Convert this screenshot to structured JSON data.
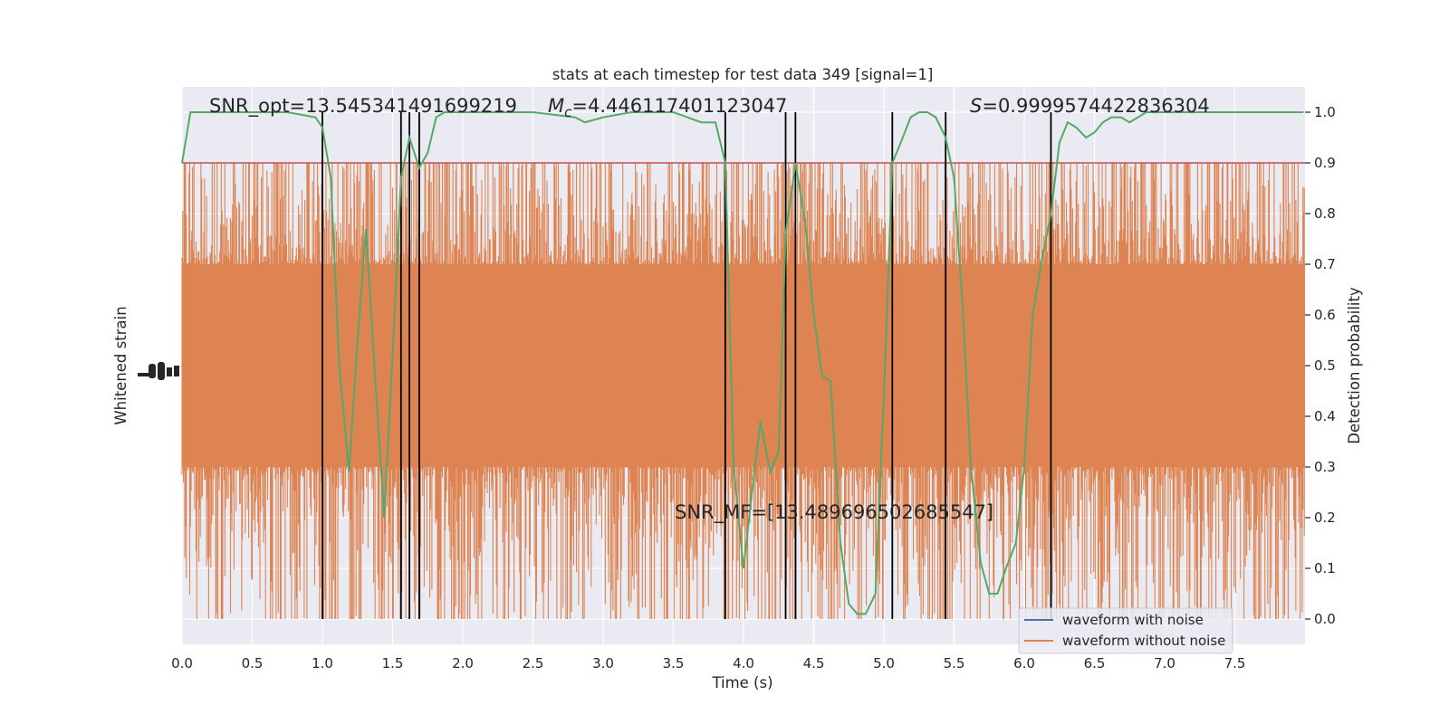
{
  "chart_data": {
    "type": "line",
    "title": "stats at each timestep for test data 349 [signal=1]",
    "xlabel": "Time (s)",
    "ylabel_left": "Whitened strain",
    "ylabel_right": "Detection probability",
    "xlim": [
      0,
      8
    ],
    "ylim_right": [
      -0.05,
      1.05
    ],
    "x_ticks": [
      "0.0",
      "0.5",
      "1.0",
      "1.5",
      "2.0",
      "2.5",
      "3.0",
      "3.5",
      "4.0",
      "4.5",
      "5.0",
      "5.5",
      "6.0",
      "6.5",
      "7.0",
      "7.5"
    ],
    "x_tick_values": [
      0,
      0.5,
      1,
      1.5,
      2,
      2.5,
      3,
      3.5,
      4,
      4.5,
      5,
      5.5,
      6,
      6.5,
      7,
      7.5
    ],
    "y_ticks_right": [
      "0.0",
      "0.1",
      "0.2",
      "0.3",
      "0.4",
      "0.5",
      "0.6",
      "0.7",
      "0.8",
      "0.9",
      "1.0"
    ],
    "y_tick_values_right": [
      0,
      0.1,
      0.2,
      0.3,
      0.4,
      0.5,
      0.6,
      0.7,
      0.8,
      0.9,
      1.0
    ],
    "threshold": 0.9,
    "grid": true,
    "legend_position": "lower-right",
    "annotations": {
      "snr_opt": "SNR_opt=13.545341491699219",
      "mc_symbol": "M",
      "mc_sub": "c",
      "mc_value": "=4.446117401123047",
      "s_symbol": "S",
      "s_value": "=0.9999574422836304",
      "snr_mf": "SNR_MF=[13.489696502685547]"
    },
    "vertical_markers": [
      1.0,
      1.56,
      1.62,
      1.69,
      3.87,
      4.3,
      4.37,
      5.06,
      5.44,
      6.19
    ],
    "series": [
      {
        "name": "waveform with noise",
        "color": "#4c72b0",
        "note_visible": true
      },
      {
        "name": "waveform without noise",
        "color": "#dd8452",
        "band_center": 0.5,
        "band_core": [
          0.3,
          0.7
        ],
        "spike_range": [
          0.0,
          0.9
        ]
      },
      {
        "name": "",
        "color": "#55a868",
        "x": [
          0.0,
          0.06,
          0.2,
          0.5,
          0.75,
          0.95,
          1.0,
          1.06,
          1.12,
          1.19,
          1.25,
          1.31,
          1.37,
          1.44,
          1.5,
          1.56,
          1.62,
          1.69,
          1.75,
          1.81,
          1.87,
          2.0,
          2.5,
          2.8,
          2.87,
          3.0,
          3.2,
          3.5,
          3.7,
          3.8,
          3.87,
          3.93,
          4.0,
          4.06,
          4.12,
          4.19,
          4.25,
          4.3,
          4.37,
          4.44,
          4.5,
          4.56,
          4.62,
          4.69,
          4.75,
          4.81,
          4.87,
          4.94,
          5.0,
          5.06,
          5.12,
          5.19,
          5.25,
          5.31,
          5.37,
          5.44,
          5.5,
          5.56,
          5.62,
          5.69,
          5.75,
          5.81,
          5.87,
          5.94,
          6.0,
          6.06,
          6.12,
          6.19,
          6.25,
          6.31,
          6.37,
          6.44,
          6.5,
          6.56,
          6.62,
          6.69,
          6.75,
          6.81,
          6.87,
          7.0,
          7.5,
          7.99
        ],
        "values": [
          0.9,
          1.0,
          1.0,
          1.0,
          1.0,
          0.99,
          0.97,
          0.87,
          0.5,
          0.29,
          0.55,
          0.77,
          0.5,
          0.2,
          0.52,
          0.87,
          0.95,
          0.89,
          0.92,
          0.99,
          1.0,
          1.0,
          1.0,
          0.99,
          0.98,
          0.99,
          1.0,
          1.0,
          0.98,
          0.98,
          0.9,
          0.3,
          0.1,
          0.25,
          0.39,
          0.29,
          0.33,
          0.76,
          0.9,
          0.78,
          0.6,
          0.48,
          0.47,
          0.15,
          0.03,
          0.01,
          0.01,
          0.05,
          0.44,
          0.9,
          0.94,
          0.99,
          1.0,
          1.0,
          0.99,
          0.95,
          0.87,
          0.62,
          0.3,
          0.11,
          0.05,
          0.05,
          0.1,
          0.15,
          0.3,
          0.6,
          0.7,
          0.8,
          0.94,
          0.98,
          0.97,
          0.95,
          0.96,
          0.98,
          0.99,
          0.99,
          0.98,
          0.99,
          1.0,
          1.0,
          1.0,
          1.0
        ]
      }
    ]
  },
  "legend": {
    "items": [
      {
        "label": "waveform with noise",
        "color": "#4c72b0"
      },
      {
        "label": "waveform without noise",
        "color": "#dd8452"
      }
    ]
  }
}
